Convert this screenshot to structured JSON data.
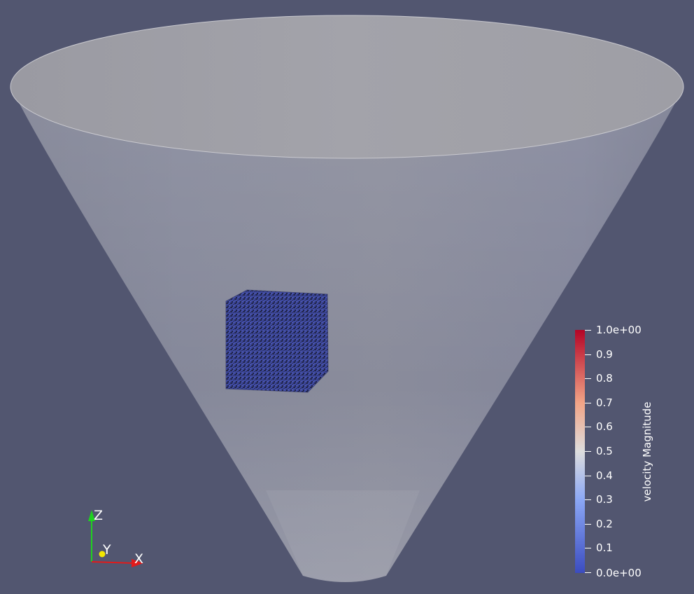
{
  "scene": {
    "background": "#525670",
    "cone_color": "#8a8c97",
    "rim_color": "#9c9ca3",
    "particle_color": "#3f4aa0"
  },
  "colorbar": {
    "title": "velocity Magnitude",
    "min_label": "0.0e+00",
    "max_label": "1.0e+00",
    "ticks": [
      "0.1",
      "0.2",
      "0.3",
      "0.4",
      "0.5",
      "0.6",
      "0.7",
      "0.8",
      "0.9"
    ],
    "color_low": "#3b4cc0",
    "color_mid": "#dddddd",
    "color_high": "#b40426"
  },
  "axes": {
    "x_label": "X",
    "y_label": "Y",
    "z_label": "Z",
    "x_color": "#e01b1b",
    "y_color": "#f2e600",
    "z_color": "#1fd11f"
  }
}
